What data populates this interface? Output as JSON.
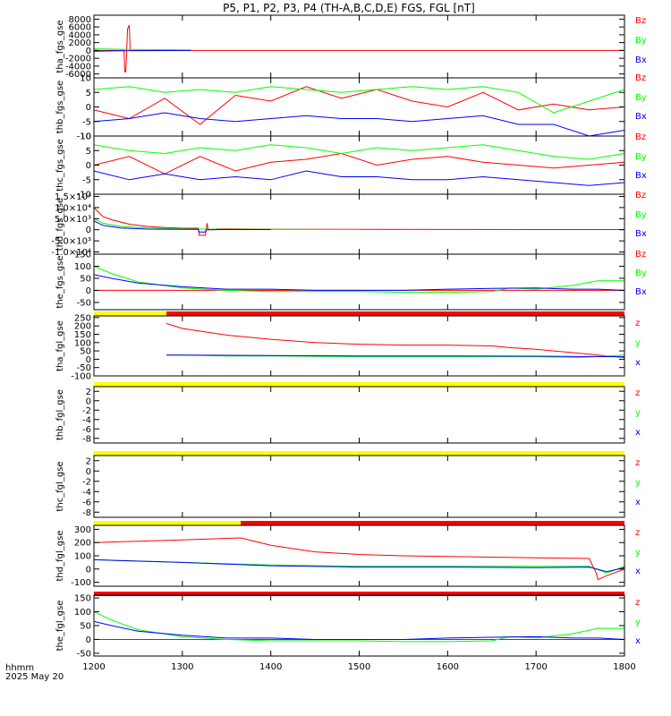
{
  "title": "P5, P1, P2, P3, P4 (TH-A,B,C,D,E) FGS, FGL [nT]",
  "footer": {
    "line1": "hhmm",
    "line2": "2025 May 20"
  },
  "colors": {
    "z": "#ff0000",
    "y": "#00ff00",
    "x": "#0000ff",
    "mode_fast": "#ff0000",
    "mode_slow": "#ffff00"
  },
  "chart_data": {
    "type": "line",
    "xlabel": "",
    "xlim": [
      1200,
      1800
    ],
    "xticks": [
      "1200",
      "1300",
      "1400",
      "1500",
      "1600",
      "1700",
      "1800"
    ],
    "panels": [
      {
        "ylabel": "tha_fgs_gse",
        "ylim": [
          -7000,
          9000
        ],
        "yticks": [
          "8000",
          "6000",
          "4000",
          "2000",
          "0",
          "-2000",
          "-4000",
          "-6000"
        ],
        "yvals": [
          8000,
          6000,
          4000,
          2000,
          0,
          -2000,
          -4000,
          -6000
        ],
        "legend": [
          "Bz",
          "By",
          "Bx"
        ],
        "mode_bar": null,
        "series": [
          {
            "name": "Bz",
            "x": [
              1200,
              1234,
              1235,
              1236,
              1237,
              1238,
              1240,
              1241,
              1242,
              1250,
              1300,
              1400,
              1500,
              1600,
              1700,
              1800
            ],
            "values": [
              0,
              0,
              -5500,
              -5500,
              0,
              5500,
              6500,
              0,
              0,
              0,
              0,
              0,
              0,
              0,
              0,
              0
            ]
          },
          {
            "name": "By",
            "x": [
              1200,
              1230,
              1310
            ],
            "values": [
              400,
              300,
              100
            ]
          },
          {
            "name": "Bx",
            "x": [
              1200,
              1230,
              1310
            ],
            "values": [
              -200,
              -100,
              0
            ]
          }
        ]
      },
      {
        "ylabel": "thb_fgs_gse",
        "ylim": [
          -10,
          10
        ],
        "yticks": [
          "10",
          "5",
          "0",
          "-5",
          "-10"
        ],
        "yvals": [
          10,
          5,
          0,
          -5,
          -10
        ],
        "legend": [
          "Bz",
          "By",
          "Bx"
        ],
        "mode_bar": null,
        "series": [
          {
            "name": "Bz",
            "x": [
              1200,
              1240,
              1280,
              1320,
              1360,
              1400,
              1440,
              1480,
              1520,
              1560,
              1600,
              1640,
              1680,
              1720,
              1760,
              1800
            ],
            "values": [
              -1,
              -4,
              3,
              -6,
              4,
              2,
              7,
              3,
              6,
              2,
              0,
              5,
              -1,
              1,
              -1,
              0
            ]
          },
          {
            "name": "By",
            "x": [
              1200,
              1240,
              1280,
              1320,
              1360,
              1400,
              1440,
              1480,
              1520,
              1560,
              1600,
              1640,
              1680,
              1720,
              1760,
              1800
            ],
            "values": [
              6,
              7,
              5,
              6,
              5,
              7,
              6,
              5,
              6,
              7,
              6,
              7,
              5,
              -2,
              2,
              6
            ]
          },
          {
            "name": "Bx",
            "x": [
              1200,
              1240,
              1280,
              1320,
              1360,
              1400,
              1440,
              1480,
              1520,
              1560,
              1600,
              1640,
              1680,
              1720,
              1760,
              1800
            ],
            "values": [
              -5,
              -4,
              -2,
              -4,
              -5,
              -4,
              -3,
              -4,
              -4,
              -5,
              -4,
              -3,
              -6,
              -6,
              -10,
              -8
            ]
          }
        ]
      },
      {
        "ylabel": "thc_fgs_gse",
        "ylim": [
          -10,
          10
        ],
        "yticks": [
          "10",
          "5",
          "0",
          "-5",
          "-10"
        ],
        "yvals": [
          10,
          5,
          0,
          -5,
          -10
        ],
        "legend": [
          "Bz",
          "By",
          "Bx"
        ],
        "mode_bar": null,
        "series": [
          {
            "name": "Bz",
            "x": [
              1200,
              1240,
              1280,
              1320,
              1360,
              1400,
              1440,
              1480,
              1520,
              1560,
              1600,
              1640,
              1680,
              1720,
              1760,
              1800
            ],
            "values": [
              0,
              3,
              -3,
              3,
              -2,
              1,
              2,
              4,
              0,
              2,
              3,
              1,
              0,
              -1,
              0,
              1
            ]
          },
          {
            "name": "By",
            "x": [
              1200,
              1240,
              1280,
              1320,
              1360,
              1400,
              1440,
              1480,
              1520,
              1560,
              1600,
              1640,
              1680,
              1720,
              1760,
              1800
            ],
            "values": [
              7,
              5,
              4,
              6,
              5,
              7,
              6,
              4,
              6,
              5,
              6,
              7,
              5,
              3,
              2,
              4
            ]
          },
          {
            "name": "Bx",
            "x": [
              1200,
              1240,
              1280,
              1320,
              1360,
              1400,
              1440,
              1480,
              1520,
              1560,
              1600,
              1640,
              1680,
              1720,
              1760,
              1800
            ],
            "values": [
              -2,
              -5,
              -3,
              -5,
              -4,
              -5,
              -2,
              -4,
              -4,
              -5,
              -5,
              -4,
              -5,
              -6,
              -7,
              -6
            ]
          }
        ]
      },
      {
        "ylabel": "thd_fgs_gse",
        "ylim": [
          -11000,
          16000
        ],
        "yticks": [
          "1.5×10⁴",
          "1.0×10⁴",
          "5.0×10³",
          "0",
          "-5.0×10³",
          "-1.0×10⁴"
        ],
        "yvals": [
          15000,
          10000,
          5000,
          0,
          -5000,
          -10000
        ],
        "legend": [
          "Bz",
          "By",
          "Bx"
        ],
        "mode_bar": null,
        "series": [
          {
            "name": "Bz",
            "x": [
              1200,
              1210,
              1220,
              1240,
              1260,
              1280,
              1300,
              1318,
              1319,
              1326,
              1327,
              1328,
              1329,
              1340,
              1400,
              1500,
              1600,
              1700,
              1800
            ],
            "values": [
              10000,
              6000,
              4500,
              2500,
              1500,
              1000,
              700,
              700,
              -2500,
              -2500,
              0,
              3000,
              0,
              400,
              250,
              150,
              120,
              100,
              90
            ]
          },
          {
            "name": "By",
            "x": [
              1200,
              1210,
              1230,
              1260,
              1300,
              1350,
              1400,
              1500
            ],
            "values": [
              5000,
              3000,
              1500,
              800,
              400,
              200,
              150,
              100
            ]
          },
          {
            "name": "Bx",
            "x": [
              1200,
              1210,
              1230,
              1260,
              1300,
              1318,
              1319,
              1326,
              1327,
              1350,
              1400
            ],
            "values": [
              4000,
              2000,
              800,
              300,
              200,
              200,
              -1000,
              -1000,
              0,
              100,
              80
            ]
          }
        ]
      },
      {
        "ylabel": "the_fgs_gse",
        "ylim": [
          -80,
          150
        ],
        "yticks": [
          "150",
          "100",
          "50",
          "0",
          "-50"
        ],
        "yvals": [
          150,
          100,
          50,
          0,
          -50
        ],
        "legend": [
          "Bz",
          "By",
          "Bx"
        ],
        "mode_bar": null,
        "series": [
          {
            "name": "Bz",
            "x": [
              1200,
              1800
            ],
            "values": [
              0,
              0
            ]
          },
          {
            "name": "By",
            "x": [
              1200,
              1220,
              1250,
              1300,
              1350,
              1400,
              1450,
              1500,
              1550,
              1600,
              1650,
              1670,
              1700,
              1740,
              1770,
              1800
            ],
            "values": [
              100,
              70,
              35,
              10,
              0,
              -5,
              -5,
              -5,
              -8,
              -8,
              -5,
              10,
              5,
              20,
              40,
              40
            ]
          },
          {
            "name": "Bx",
            "x": [
              1200,
              1220,
              1250,
              1300,
              1350,
              1400,
              1450,
              1500,
              1550,
              1600,
              1650,
              1700,
              1740,
              1770,
              1800
            ],
            "values": [
              65,
              50,
              30,
              15,
              5,
              5,
              0,
              0,
              0,
              5,
              8,
              10,
              5,
              5,
              0
            ]
          }
        ]
      },
      {
        "ylabel": "tha_fgl_gse",
        "ylim": [
          -100,
          260
        ],
        "yticks": [
          "250",
          "200",
          "150",
          "100",
          "50",
          "0",
          "-50",
          "-100"
        ],
        "yvals": [
          250,
          200,
          150,
          100,
          50,
          0,
          -50,
          -100
        ],
        "legend": [
          "z",
          "y",
          "x"
        ],
        "mode_bar": [
          [
            1200,
            1282,
            "mode_slow"
          ],
          [
            1282,
            1800,
            "mode_fast"
          ]
        ],
        "series": [
          {
            "name": "z",
            "x": [
              1282,
              1300,
              1350,
              1400,
              1450,
              1500,
              1550,
              1600,
              1650,
              1670,
              1700,
              1720,
              1740,
              1760,
              1780,
              1800
            ],
            "values": [
              215,
              185,
              145,
              120,
              100,
              90,
              85,
              85,
              80,
              70,
              60,
              50,
              40,
              30,
              20,
              10
            ]
          },
          {
            "name": "y",
            "x": [
              1282,
              1300,
              1350,
              1400,
              1500,
              1600,
              1700,
              1750,
              1800
            ],
            "values": [
              25,
              25,
              20,
              20,
              15,
              15,
              15,
              10,
              25
            ]
          },
          {
            "name": "x",
            "x": [
              1282,
              1300,
              1400,
              1500,
              1600,
              1700,
              1800
            ],
            "values": [
              25,
              25,
              22,
              20,
              20,
              18,
              15
            ]
          }
        ]
      },
      {
        "ylabel": "thb_fgl_gse",
        "ylim": [
          -9,
          3
        ],
        "yticks": [
          "2",
          "0",
          "-2",
          "-4",
          "-6",
          "-8"
        ],
        "yvals": [
          2,
          0,
          -2,
          -4,
          -6,
          -8
        ],
        "legend": [
          "z",
          "y",
          "x"
        ],
        "mode_bar": [
          [
            1200,
            1800,
            "mode_slow"
          ]
        ],
        "series": []
      },
      {
        "ylabel": "thc_fgl_gse",
        "ylim": [
          -9,
          3
        ],
        "yticks": [
          "2",
          "0",
          "-2",
          "-4",
          "-6",
          "-8"
        ],
        "yvals": [
          2,
          0,
          -2,
          -4,
          -6,
          -8
        ],
        "legend": [
          "z",
          "y",
          "x"
        ],
        "mode_bar": [
          [
            1200,
            1800,
            "mode_slow"
          ]
        ],
        "series": []
      },
      {
        "ylabel": "thd_fgl_gse",
        "ylim": [
          -130,
          330
        ],
        "yticks": [
          "300",
          "200",
          "100",
          "0",
          "-100"
        ],
        "yvals": [
          300,
          200,
          100,
          0,
          -100
        ],
        "legend": [
          "z",
          "y",
          "x"
        ],
        "mode_bar": [
          [
            1200,
            1366,
            "mode_slow"
          ],
          [
            1366,
            1800,
            "mode_fast"
          ]
        ],
        "series": [
          {
            "name": "z",
            "x": [
              1200,
              1250,
              1300,
              1366,
              1400,
              1450,
              1500,
              1550,
              1600,
              1650,
              1700,
              1760,
              1768,
              1770,
              1780,
              1800
            ],
            "values": [
              200,
              210,
              220,
              235,
              180,
              130,
              110,
              100,
              95,
              90,
              85,
              80,
              -30,
              -80,
              -50,
              0
            ]
          },
          {
            "name": "y",
            "x": [
              1200,
              1300,
              1400,
              1500,
              1600,
              1700,
              1760,
              1780,
              1800
            ],
            "values": [
              70,
              50,
              30,
              20,
              20,
              20,
              20,
              -30,
              20
            ]
          },
          {
            "name": "x",
            "x": [
              1200,
              1300,
              1400,
              1500,
              1600,
              1700,
              1760,
              1780,
              1800
            ],
            "values": [
              70,
              50,
              25,
              15,
              15,
              10,
              15,
              -20,
              10
            ]
          }
        ]
      },
      {
        "ylabel": "the_fgl_gse",
        "ylim": [
          -60,
          160
        ],
        "yticks": [
          "150",
          "100",
          "50",
          "0",
          "-50"
        ],
        "yvals": [
          150,
          100,
          50,
          0,
          -50
        ],
        "legend": [
          "z",
          "y",
          "x"
        ],
        "mode_bar": [
          [
            1200,
            1800,
            "mode_fast"
          ]
        ],
        "series": [
          {
            "name": "z",
            "x": [
              1200,
              1800
            ],
            "values": [
              0,
              0
            ]
          },
          {
            "name": "y",
            "x": [
              1200,
              1220,
              1250,
              1300,
              1350,
              1400,
              1450,
              1500,
              1550,
              1600,
              1650,
              1670,
              1700,
              1740,
              1770,
              1800
            ],
            "values": [
              100,
              70,
              35,
              10,
              0,
              -5,
              -5,
              -5,
              -8,
              -8,
              -5,
              10,
              5,
              20,
              40,
              40
            ]
          },
          {
            "name": "x",
            "x": [
              1200,
              1220,
              1250,
              1300,
              1350,
              1400,
              1450,
              1500,
              1550,
              1600,
              1650,
              1700,
              1740,
              1770,
              1800
            ],
            "values": [
              65,
              50,
              30,
              15,
              5,
              5,
              0,
              0,
              0,
              5,
              8,
              10,
              5,
              5,
              0
            ]
          }
        ]
      }
    ]
  }
}
